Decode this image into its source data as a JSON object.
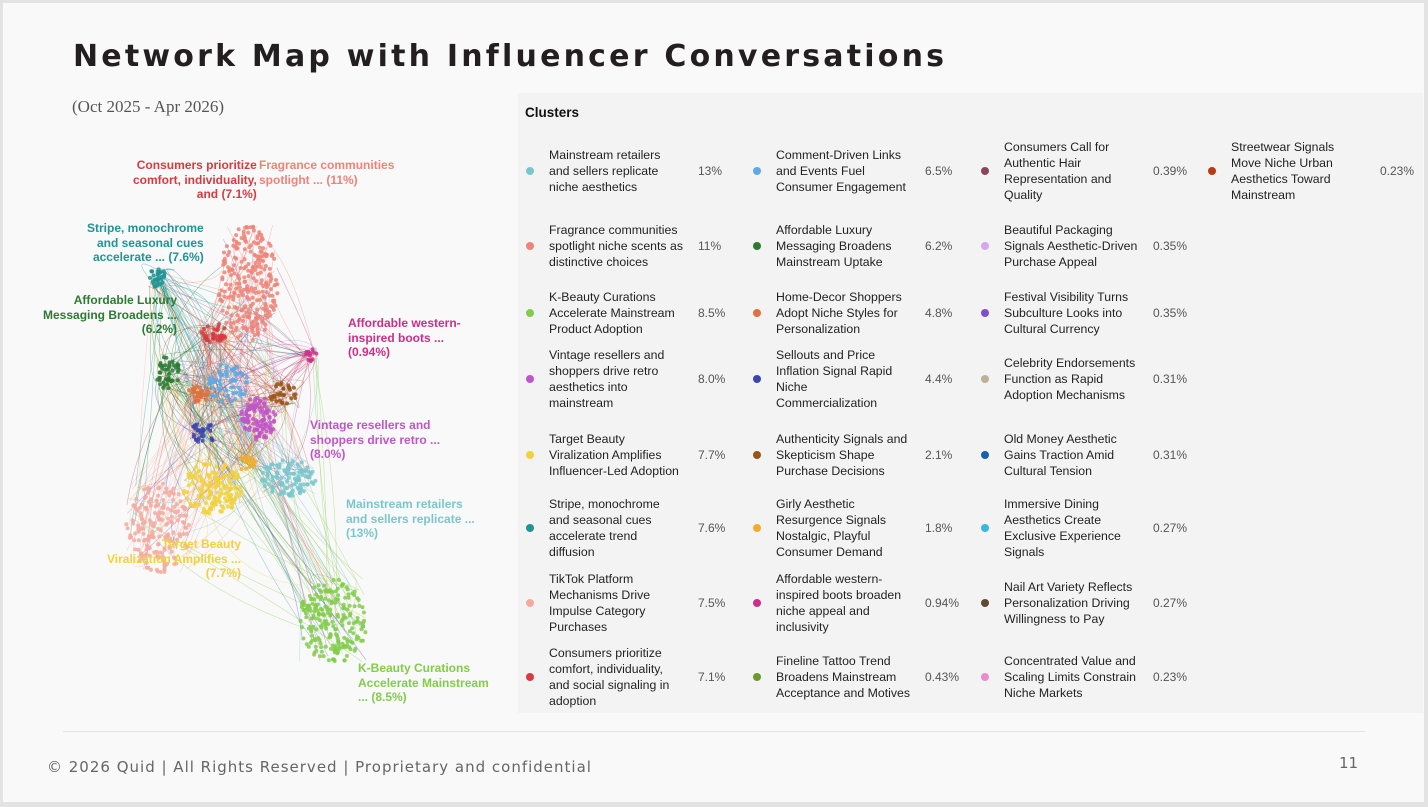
{
  "title": "Network Map with Influencer Conversations",
  "date_range": "(Oct 2025 - Apr 2026)",
  "clusters_heading": "Clusters",
  "clusters": [
    {
      "name": "Mainstream retailers and sellers replicate niche aesthetics",
      "pct": "13%",
      "color": "#79c7cc"
    },
    {
      "name": "Fragrance communities spotlight niche scents as distinctive choices",
      "pct": "11%",
      "color": "#ee8478"
    },
    {
      "name": "K-Beauty Curations Accelerate Mainstream Product Adoption",
      "pct": "8.5%",
      "color": "#82cc4b"
    },
    {
      "name": "Vintage resellers and shoppers drive retro aesthetics into mainstream",
      "pct": "8.0%",
      "color": "#bf55c9"
    },
    {
      "name": "Target Beauty Viralization Amplifies Influencer-Led Adoption",
      "pct": "7.7%",
      "color": "#f2d13c"
    },
    {
      "name": "Stripe, monochrome and seasonal cues accelerate trend diffusion",
      "pct": "7.6%",
      "color": "#1f9494"
    },
    {
      "name": "TikTok Platform Mechanisms Drive Impulse Category Purchases",
      "pct": "7.5%",
      "color": "#f4aaa0"
    },
    {
      "name": "Consumers prioritize comfort, individuality, and social signaling in adoption",
      "pct": "7.1%",
      "color": "#d73a3f"
    },
    {
      "name": "Comment-Driven Links and Events Fuel Consumer Engagement",
      "pct": "6.5%",
      "color": "#5fa8e5"
    },
    {
      "name": "Affordable Luxury Messaging Broadens Mainstream Uptake",
      "pct": "6.2%",
      "color": "#2d7a33"
    },
    {
      "name": "Home-Decor Shoppers Adopt Niche Styles for Personalization",
      "pct": "4.8%",
      "color": "#e0703d"
    },
    {
      "name": "Sellouts and Price Inflation Signal Rapid Niche Commercialization",
      "pct": "4.4%",
      "color": "#3b45b0"
    },
    {
      "name": "Authenticity Signals and Skepticism Shape Purchase Decisions",
      "pct": "2.1%",
      "color": "#9a5418"
    },
    {
      "name": "Girly Aesthetic Resurgence Signals Nostalgic, Playful Consumer Demand",
      "pct": "1.8%",
      "color": "#f2ac2c"
    },
    {
      "name": "Affordable western-inspired boots broaden niche appeal and inclusivity",
      "pct": "0.94%",
      "color": "#cc2f86"
    },
    {
      "name": "Fineline Tattoo Trend Broadens Mainstream Acceptance and Motives",
      "pct": "0.43%",
      "color": "#6c9a2a"
    },
    {
      "name": "Consumers Call for Authentic Hair Representation and Quality",
      "pct": "0.39%",
      "color": "#8c4560"
    },
    {
      "name": "Beautiful Packaging Signals Aesthetic-Driven Purchase Appeal",
      "pct": "0.35%",
      "color": "#d6a7ef"
    },
    {
      "name": "Festival Visibility Turns Subculture Looks into Cultural Currency",
      "pct": "0.35%",
      "color": "#7f4fc9"
    },
    {
      "name": "Celebrity Endorsements Function as Rapid Adoption Mechanisms",
      "pct": "0.31%",
      "color": "#bdb096"
    },
    {
      "name": "Old Money Aesthetic Gains Traction Amid Cultural Tension",
      "pct": "0.31%",
      "color": "#1660ad"
    },
    {
      "name": "Immersive Dining Aesthetics Create Exclusive Experience Signals",
      "pct": "0.27%",
      "color": "#38b8dc"
    },
    {
      "name": "Nail Art Variety Reflects Personalization Driving Willingness to Pay",
      "pct": "0.27%",
      "color": "#5e4a33"
    },
    {
      "name": "Concentrated Value and Scaling Limits Constrain Niche Markets",
      "pct": "0.23%",
      "color": "#ea8bd0"
    },
    {
      "name": "Streetwear Signals Move Niche Urban Aesthetics Toward Mainstream",
      "pct": "0.23%",
      "color": "#b83a12"
    }
  ],
  "network_labels": [
    {
      "lines": [
        "Consumers prioritize",
        "comfort, individuality,",
        "and (7.1%)"
      ],
      "color": "#d73a3f"
    },
    {
      "lines": [
        "Fragrance communities",
        "spotlight ... (11%)"
      ],
      "color": "#ee8478"
    },
    {
      "lines": [
        "Stripe, monochrome",
        "and seasonal cues",
        "accelerate ... (7.6%)"
      ],
      "color": "#1f9494"
    },
    {
      "lines": [
        "Affordable Luxury",
        "Messaging Broadens ...",
        "(6.2%)"
      ],
      "color": "#2d7a33"
    },
    {
      "lines": [
        "Affordable western-",
        "inspired boots ...",
        "(0.94%)"
      ],
      "color": "#cc2f86"
    },
    {
      "lines": [
        "Vintage resellers and",
        "shoppers drive retro ...",
        "(8.0%)"
      ],
      "color": "#bf55c9"
    },
    {
      "lines": [
        "Mainstream retailers",
        "and sellers replicate ...",
        "(13%)"
      ],
      "color": "#79c7cc"
    },
    {
      "lines": [
        "Target Beauty",
        "Viralization Amplifies ...",
        "(7.7%)"
      ],
      "color": "#f2d13c"
    },
    {
      "lines": [
        "K-Beauty Curations",
        "Accelerate Mainstream",
        "... (8.5%)"
      ],
      "color": "#82cc4b"
    }
  ],
  "footer": "© 2026 Quid | All Rights Reserved | Proprietary and confidential",
  "page_number": "11"
}
